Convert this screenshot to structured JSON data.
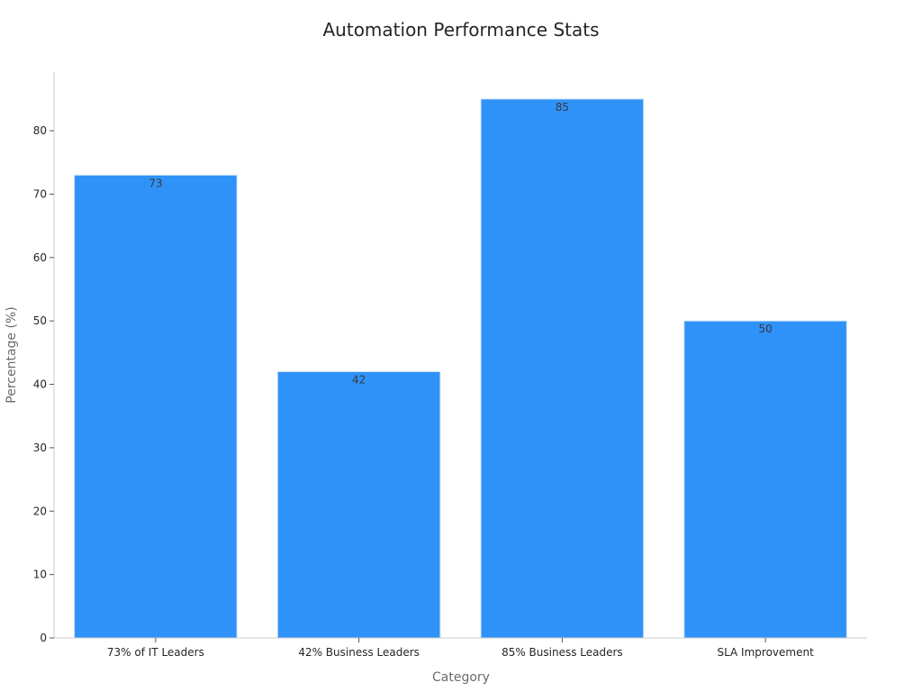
{
  "chart_data": {
    "type": "bar",
    "title": "Automation Performance Stats",
    "xlabel": "Category",
    "ylabel": "Percentage (%)",
    "categories": [
      "73% of IT Leaders",
      "42% Business Leaders",
      "85% Business Leaders",
      "SLA Improvement"
    ],
    "values": [
      73,
      42,
      85,
      50
    ],
    "ylim": [
      0,
      89.25
    ],
    "yticks": [
      0,
      10,
      20,
      30,
      40,
      50,
      60,
      70,
      80
    ],
    "bar_color": "#2f92f8",
    "bar_edge_color": "#cfe3f9",
    "grid": false,
    "legend": "none"
  }
}
